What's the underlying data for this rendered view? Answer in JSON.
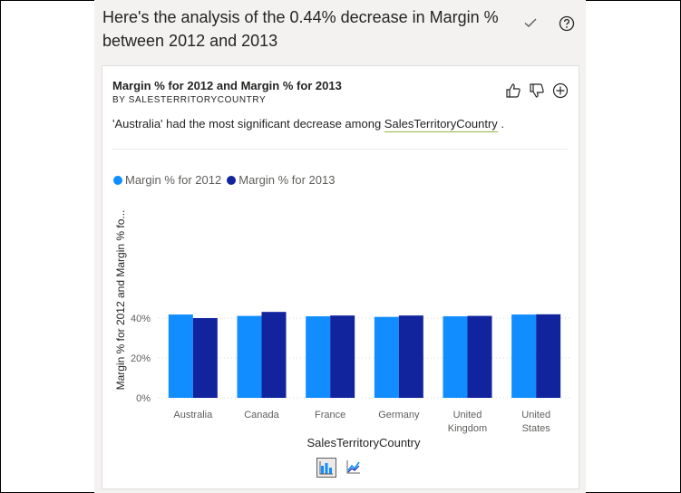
{
  "headline": "Here's the analysis of the 0.44% decrease in Margin % between 2012 and 2013",
  "card": {
    "title": "Margin % for 2012 and Margin % for 2013",
    "subtitle": "BY SALESTERRITORYCOUNTRY",
    "insight_prefix": "'Australia' had the most significant decrease among ",
    "insight_field": "SalesTerritoryCountry",
    "insight_suffix": " ."
  },
  "icons": {
    "check": "check-icon",
    "help": "help-icon",
    "thumbs_up": "thumbs-up-icon",
    "thumbs_down": "thumbs-down-icon",
    "add": "add-icon",
    "column_chart": "column-chart-icon",
    "line_chart": "line-chart-icon"
  },
  "colors": {
    "series_2012": "#118dff",
    "series_2013": "#12239e"
  },
  "chart_data": {
    "type": "bar",
    "categories": [
      "Australia",
      "Canada",
      "France",
      "Germany",
      "United Kingdom",
      "United States"
    ],
    "category_lines": [
      [
        "Australia"
      ],
      [
        "Canada"
      ],
      [
        "France"
      ],
      [
        "Germany"
      ],
      [
        "United",
        "Kingdom"
      ],
      [
        "United",
        "States"
      ]
    ],
    "series": [
      {
        "name": "Margin % for 2012",
        "values": [
          41.8,
          41.1,
          40.9,
          40.6,
          40.9,
          41.8
        ]
      },
      {
        "name": "Margin % for 2013",
        "values": [
          40.0,
          43.1,
          41.3,
          41.3,
          41.1,
          41.9
        ]
      }
    ],
    "xlabel": "SalesTerritoryCountry",
    "ylabel": "Margin % for 2012 and Margin % fo...",
    "yticks": [
      "0%",
      "20%",
      "40%"
    ],
    "ytick_values": [
      0,
      20,
      40
    ],
    "ylim": [
      0,
      44
    ],
    "grid": true,
    "legend_position": "top-left"
  }
}
